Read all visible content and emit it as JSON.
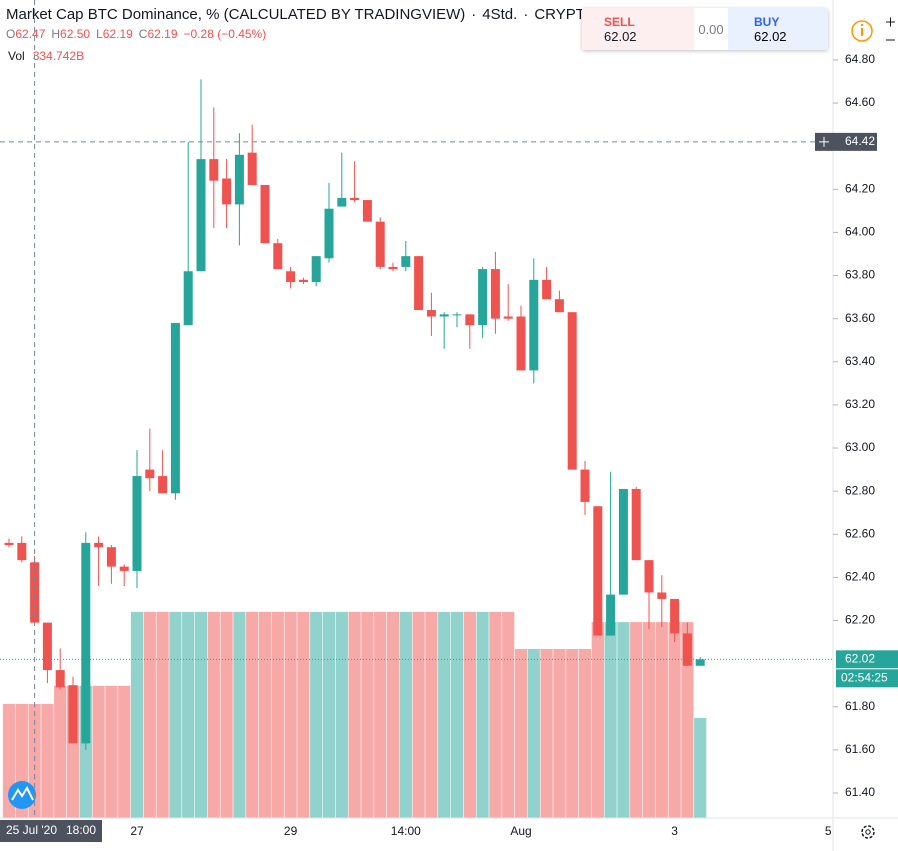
{
  "chart_data": {
    "type": "candlestick",
    "title": "Market Cap BTC Dominance, % (CALCULATED BY TRADINGVIEW)",
    "separator": "·",
    "interval": "4Std.",
    "symbol": "CRYPTOCAP",
    "ohlc_header": [
      {
        "key": "O",
        "value": "62.47"
      },
      {
        "key": "H",
        "value": "62.50"
      },
      {
        "key": "L",
        "value": "62.19"
      },
      {
        "key": "C",
        "value": "62.19"
      }
    ],
    "change": "−0.28 (−0.45%)",
    "volume_name": "Vol",
    "volume_label": "334.742B",
    "up_color": "#26a69a",
    "down_color": "#ef5350",
    "open": [
      62.56,
      62.56,
      62.47,
      62.19,
      61.97,
      61.9,
      61.63,
      62.56,
      62.54,
      62.45,
      62.43,
      62.9,
      62.87,
      62.79,
      63.57,
      63.82,
      64.34,
      64.25,
      64.13,
      64.37,
      64.22,
      63.95,
      63.82,
      63.78,
      63.77,
      63.88,
      64.12,
      64.16,
      64.15,
      64.05,
      63.84,
      63.84,
      63.89,
      63.64,
      63.61,
      63.62,
      63.62,
      63.57,
      63.83,
      63.61,
      63.61,
      63.36,
      63.78,
      63.69,
      63.63,
      62.9,
      62.73,
      62.13,
      62.32,
      62.81,
      62.48,
      62.33,
      62.3,
      62.14,
      61.99
    ],
    "high": [
      62.58,
      62.59,
      62.5,
      62.19,
      62.07,
      61.94,
      62.61,
      62.59,
      62.55,
      62.46,
      62.99,
      63.09,
      62.99,
      63.58,
      64.42,
      64.71,
      64.58,
      64.34,
      64.46,
      64.5,
      64.22,
      63.97,
      63.84,
      63.79,
      63.89,
      64.23,
      64.37,
      64.33,
      64.15,
      64.07,
      63.86,
      63.96,
      63.89,
      63.72,
      63.63,
      63.63,
      63.62,
      63.84,
      63.91,
      63.76,
      63.66,
      63.88,
      63.84,
      63.73,
      63.63,
      62.94,
      62.73,
      62.89,
      62.81,
      62.82,
      62.48,
      62.41,
      62.3,
      62.19,
      62.03
    ],
    "low": [
      62.54,
      62.47,
      62.19,
      61.91,
      61.88,
      61.63,
      61.6,
      62.36,
      62.37,
      62.36,
      62.35,
      62.8,
      62.79,
      62.76,
      63.57,
      63.82,
      64.02,
      64.02,
      63.94,
      64.22,
      63.95,
      63.83,
      63.74,
      63.76,
      63.75,
      63.86,
      64.12,
      64.14,
      64.05,
      63.83,
      63.82,
      63.82,
      63.64,
      63.52,
      63.46,
      63.56,
      63.46,
      63.51,
      63.53,
      63.59,
      63.36,
      63.3,
      63.69,
      63.63,
      62.9,
      62.69,
      62.13,
      62.13,
      62.32,
      62.48,
      62.16,
      62.17,
      62.1,
      61.99,
      61.99
    ],
    "close": [
      62.55,
      62.48,
      62.19,
      61.97,
      61.89,
      61.63,
      62.56,
      62.54,
      62.45,
      62.43,
      62.87,
      62.86,
      62.79,
      63.58,
      63.82,
      64.34,
      64.24,
      64.13,
      64.36,
      64.22,
      63.95,
      63.83,
      63.77,
      63.77,
      63.89,
      64.11,
      64.16,
      64.15,
      64.05,
      63.84,
      63.83,
      63.89,
      63.64,
      63.61,
      63.62,
      63.62,
      63.57,
      63.83,
      63.6,
      63.6,
      63.36,
      63.78,
      63.69,
      63.63,
      62.9,
      62.75,
      62.13,
      62.32,
      62.81,
      62.48,
      62.33,
      62.3,
      62.14,
      61.99,
      62.02
    ],
    "volume": [
      335,
      335,
      334.742,
      335,
      388,
      388,
      388,
      388,
      388,
      388,
      605,
      605,
      605,
      605,
      605,
      605,
      605,
      605,
      605,
      605,
      605,
      605,
      605,
      605,
      605,
      605,
      605,
      605,
      605,
      605,
      605,
      605,
      605,
      605,
      605,
      605,
      605,
      605,
      605,
      605,
      496,
      496,
      496,
      496,
      496,
      496,
      575,
      575,
      575,
      575,
      575,
      575,
      575,
      575,
      294
    ],
    "ylim": [
      61.284,
      65.078
    ],
    "vol_ylim": [
      0,
      2401
    ],
    "yticks": [
      {
        "value": 64.8,
        "label": "64.80"
      },
      {
        "value": 64.6,
        "label": "64.60"
      },
      {
        "value": 64.4,
        "label": "64.40"
      },
      {
        "value": 64.2,
        "label": "64.20"
      },
      {
        "value": 64.0,
        "label": "64.00"
      },
      {
        "value": 63.8,
        "label": "63.80"
      },
      {
        "value": 63.6,
        "label": "63.60"
      },
      {
        "value": 63.4,
        "label": "63.40"
      },
      {
        "value": 63.2,
        "label": "63.20"
      },
      {
        "value": 63.0,
        "label": "63.00"
      },
      {
        "value": 62.8,
        "label": "62.80"
      },
      {
        "value": 62.6,
        "label": "62.60"
      },
      {
        "value": 62.4,
        "label": "62.40"
      },
      {
        "value": 62.2,
        "label": "62.20"
      },
      {
        "value": 61.8,
        "label": "61.80"
      },
      {
        "value": 61.6,
        "label": "61.60"
      },
      {
        "value": 61.4,
        "label": "61.40"
      }
    ],
    "time_labels": [
      {
        "index": 10,
        "label": "27"
      },
      {
        "index": 22,
        "label": "29"
      },
      {
        "index": 31,
        "label": "14:00"
      },
      {
        "index": 40,
        "label": "Aug"
      },
      {
        "index": 52,
        "label": "3"
      },
      {
        "index": 64,
        "label": "5"
      }
    ],
    "crosshair": {
      "index": 2,
      "price": 64.42,
      "price_label": "64.42",
      "date_label": "25 Jul '20",
      "time_label": "18:00"
    },
    "last_price": {
      "value": 62.02,
      "label": "62.02",
      "countdown": "02:54:25"
    }
  },
  "trade": {
    "sell_label": "SELL",
    "sell": "62.02",
    "spread": "0.00",
    "buy_label": "BUY",
    "buy": "62.02"
  }
}
